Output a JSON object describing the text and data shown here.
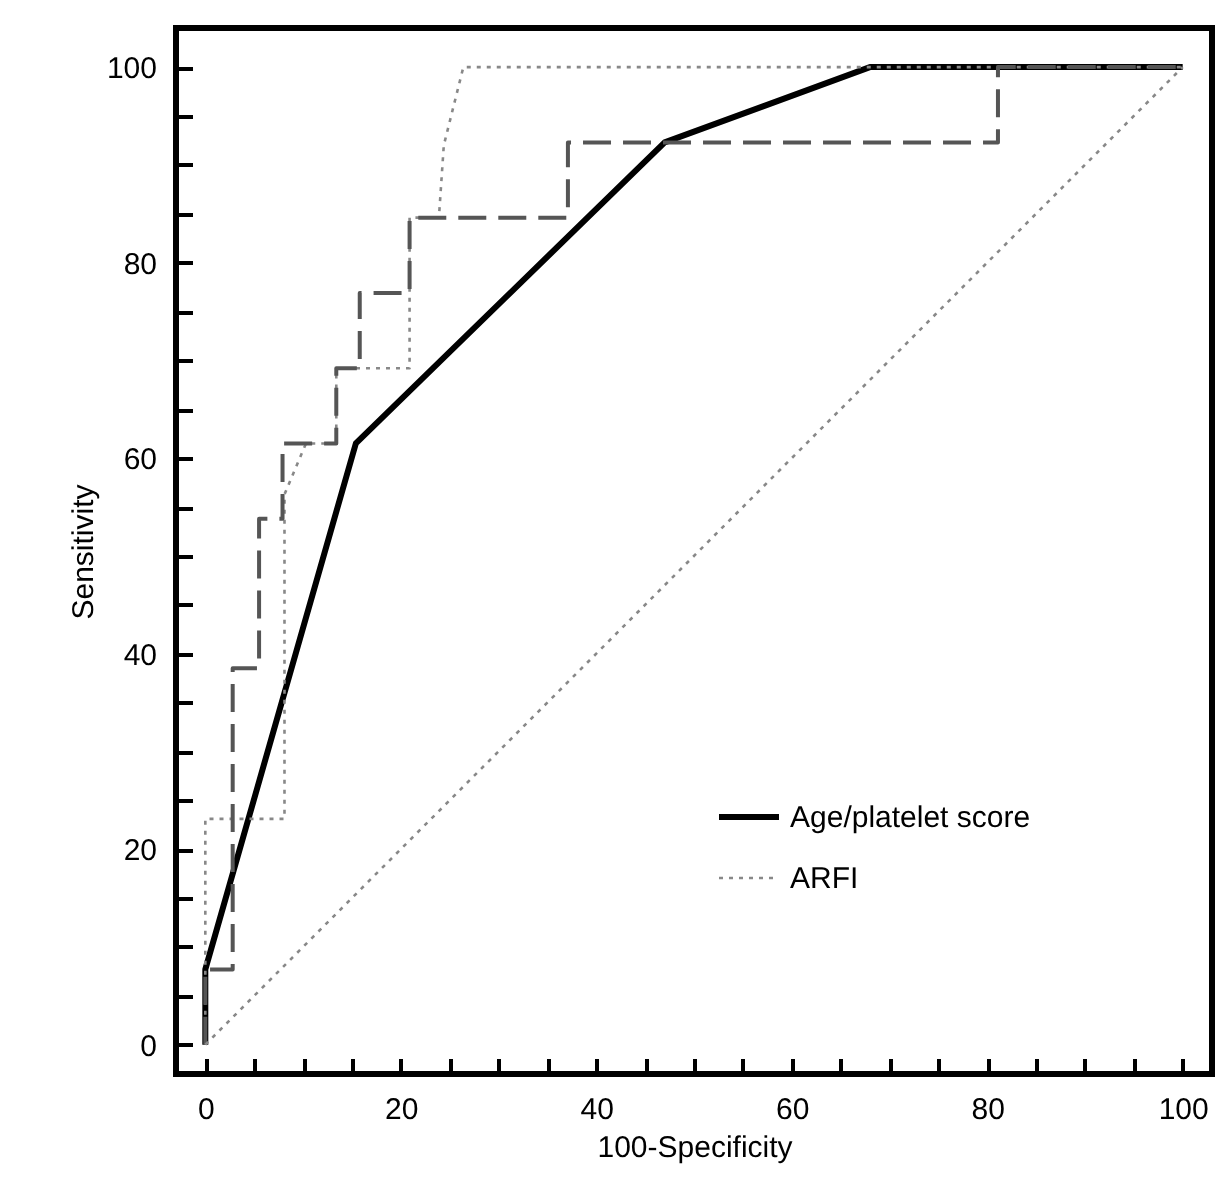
{
  "chart_data": {
    "type": "line",
    "xlabel": "100-Specificity",
    "ylabel": "Sensitivity",
    "xlim": [
      -3,
      103
    ],
    "ylim": [
      -3,
      104
    ],
    "xticks": [
      0,
      {
        "value": 5,
        "label": null
      },
      {
        "value": 10,
        "label": null
      },
      {
        "value": 15,
        "label": null
      },
      20,
      {
        "value": 25,
        "label": null
      },
      {
        "value": 30,
        "label": null
      },
      {
        "value": 35,
        "label": null
      },
      40,
      {
        "value": 45,
        "label": null
      },
      {
        "value": 50,
        "label": null
      },
      {
        "value": 55,
        "label": null
      },
      60,
      {
        "value": 65,
        "label": null
      },
      {
        "value": 70,
        "label": null
      },
      {
        "value": 75,
        "label": null
      },
      80,
      {
        "value": 85,
        "label": null
      },
      {
        "value": 90,
        "label": null
      },
      {
        "value": 95,
        "label": null
      },
      100
    ],
    "yticks": [
      0,
      {
        "value": 5,
        "label": null
      },
      {
        "value": 10,
        "label": null
      },
      {
        "value": 15,
        "label": null
      },
      20,
      {
        "value": 25,
        "label": null
      },
      {
        "value": 30,
        "label": null
      },
      {
        "value": 35,
        "label": null
      },
      40,
      {
        "value": 45,
        "label": null
      },
      {
        "value": 50,
        "label": null
      },
      {
        "value": 55,
        "label": null
      },
      60,
      {
        "value": 65,
        "label": null
      },
      {
        "value": 70,
        "label": null
      },
      {
        "value": 75,
        "label": null
      },
      80,
      {
        "value": 85,
        "label": null
      },
      {
        "value": 90,
        "label": null
      },
      {
        "value": 95,
        "label": null
      },
      100
    ],
    "grid": false,
    "legend": "bottom right",
    "marker": "none",
    "series": [
      {
        "name": "Age/platelet score",
        "color": "#000000",
        "line_style": "solid",
        "x": [
          0,
          0,
          15.4,
          47,
          68,
          100
        ],
        "values": [
          0,
          7.7,
          61.5,
          92.3,
          100,
          100
        ]
      },
      {
        "color": "#555555",
        "line_style": "dashed",
        "x": [
          0,
          0,
          2.8,
          2.8,
          5.5,
          5.5,
          7.9,
          7.9,
          13.4,
          13.4,
          15.8,
          15.8,
          20.9,
          20.9,
          37.1,
          37.1,
          81.1,
          81.1,
          100
        ],
        "values": [
          0,
          7.7,
          7.7,
          38.5,
          38.5,
          53.8,
          53.8,
          61.5,
          61.5,
          69.2,
          69.2,
          76.9,
          76.9,
          84.6,
          84.6,
          92.3,
          92.3,
          100,
          100
        ]
      },
      {
        "name": "ARFI",
        "color": "#888888",
        "line_style": "dotted",
        "x": [
          0,
          0,
          8.1,
          8.1,
          10.3,
          13.4,
          13.4,
          20.9,
          20.9,
          23.9,
          24.4,
          26.4,
          100
        ],
        "values": [
          0,
          23.1,
          23.1,
          56.3,
          61.5,
          61.5,
          69.2,
          69.2,
          84.6,
          84.6,
          92,
          100,
          100
        ]
      },
      {
        "color": "#888888",
        "line_style": "dotted",
        "x": [
          0,
          100
        ],
        "values": [
          0,
          100
        ]
      }
    ]
  }
}
